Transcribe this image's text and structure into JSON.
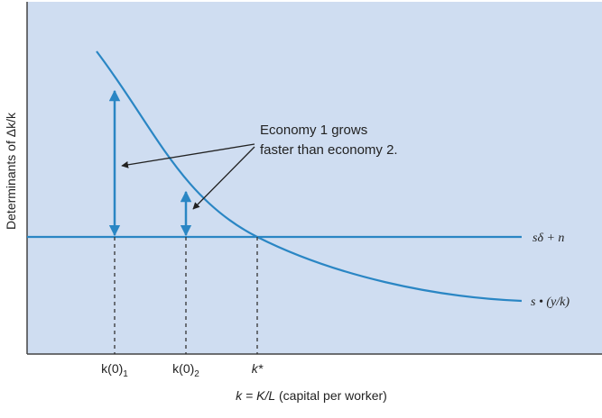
{
  "axes": {
    "ylabel": "Determinants of Δk/k",
    "xlabel_var": "k = K/L",
    "xlabel_desc": "(capital per worker)"
  },
  "ticks": {
    "k0_1": "k(0)",
    "k0_1_sub": "1",
    "k0_2": "k(0)",
    "k0_2_sub": "2",
    "kstar": "k*"
  },
  "lines": {
    "horizontal_label": "sδ + n",
    "curve_label": "s • (y/k)"
  },
  "annotation": {
    "line1": "Economy 1 grows",
    "line2": "faster than economy 2."
  },
  "colors": {
    "plot_bg": "#cfddf1",
    "curve": "#2a86c4",
    "axis": "#444444",
    "dash": "#333333",
    "arrow": "#2a86c4"
  }
}
